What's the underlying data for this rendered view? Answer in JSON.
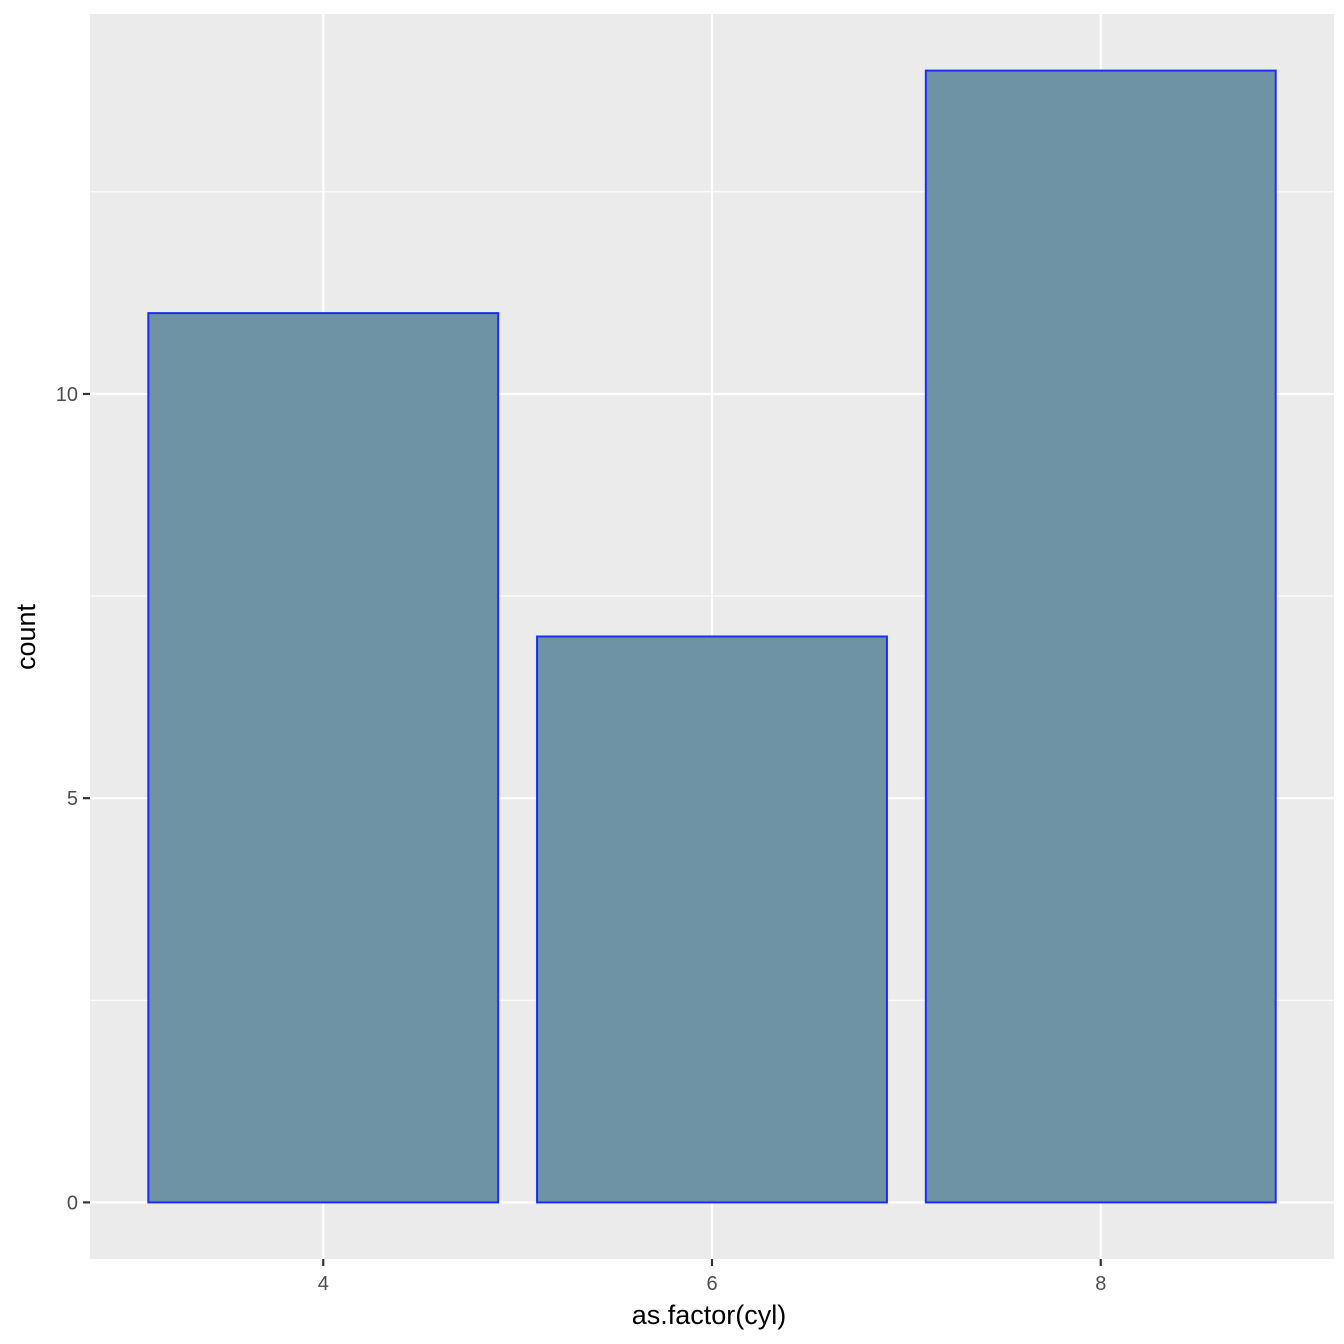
{
  "chart_data": {
    "type": "bar",
    "categories": [
      "4",
      "6",
      "8"
    ],
    "values": [
      11,
      7,
      14
    ],
    "title": "",
    "xlabel": "as.factor(cyl)",
    "ylabel": "count",
    "ylim": [
      -0.7,
      14.7
    ],
    "yticks": [
      0,
      5,
      10
    ],
    "grid": true,
    "legend": "none",
    "colors": {
      "panel_background": "#ebebeb",
      "grid": "#ffffff",
      "bar_fill": "#6890a1",
      "bar_outline": "#1a2cff"
    }
  }
}
